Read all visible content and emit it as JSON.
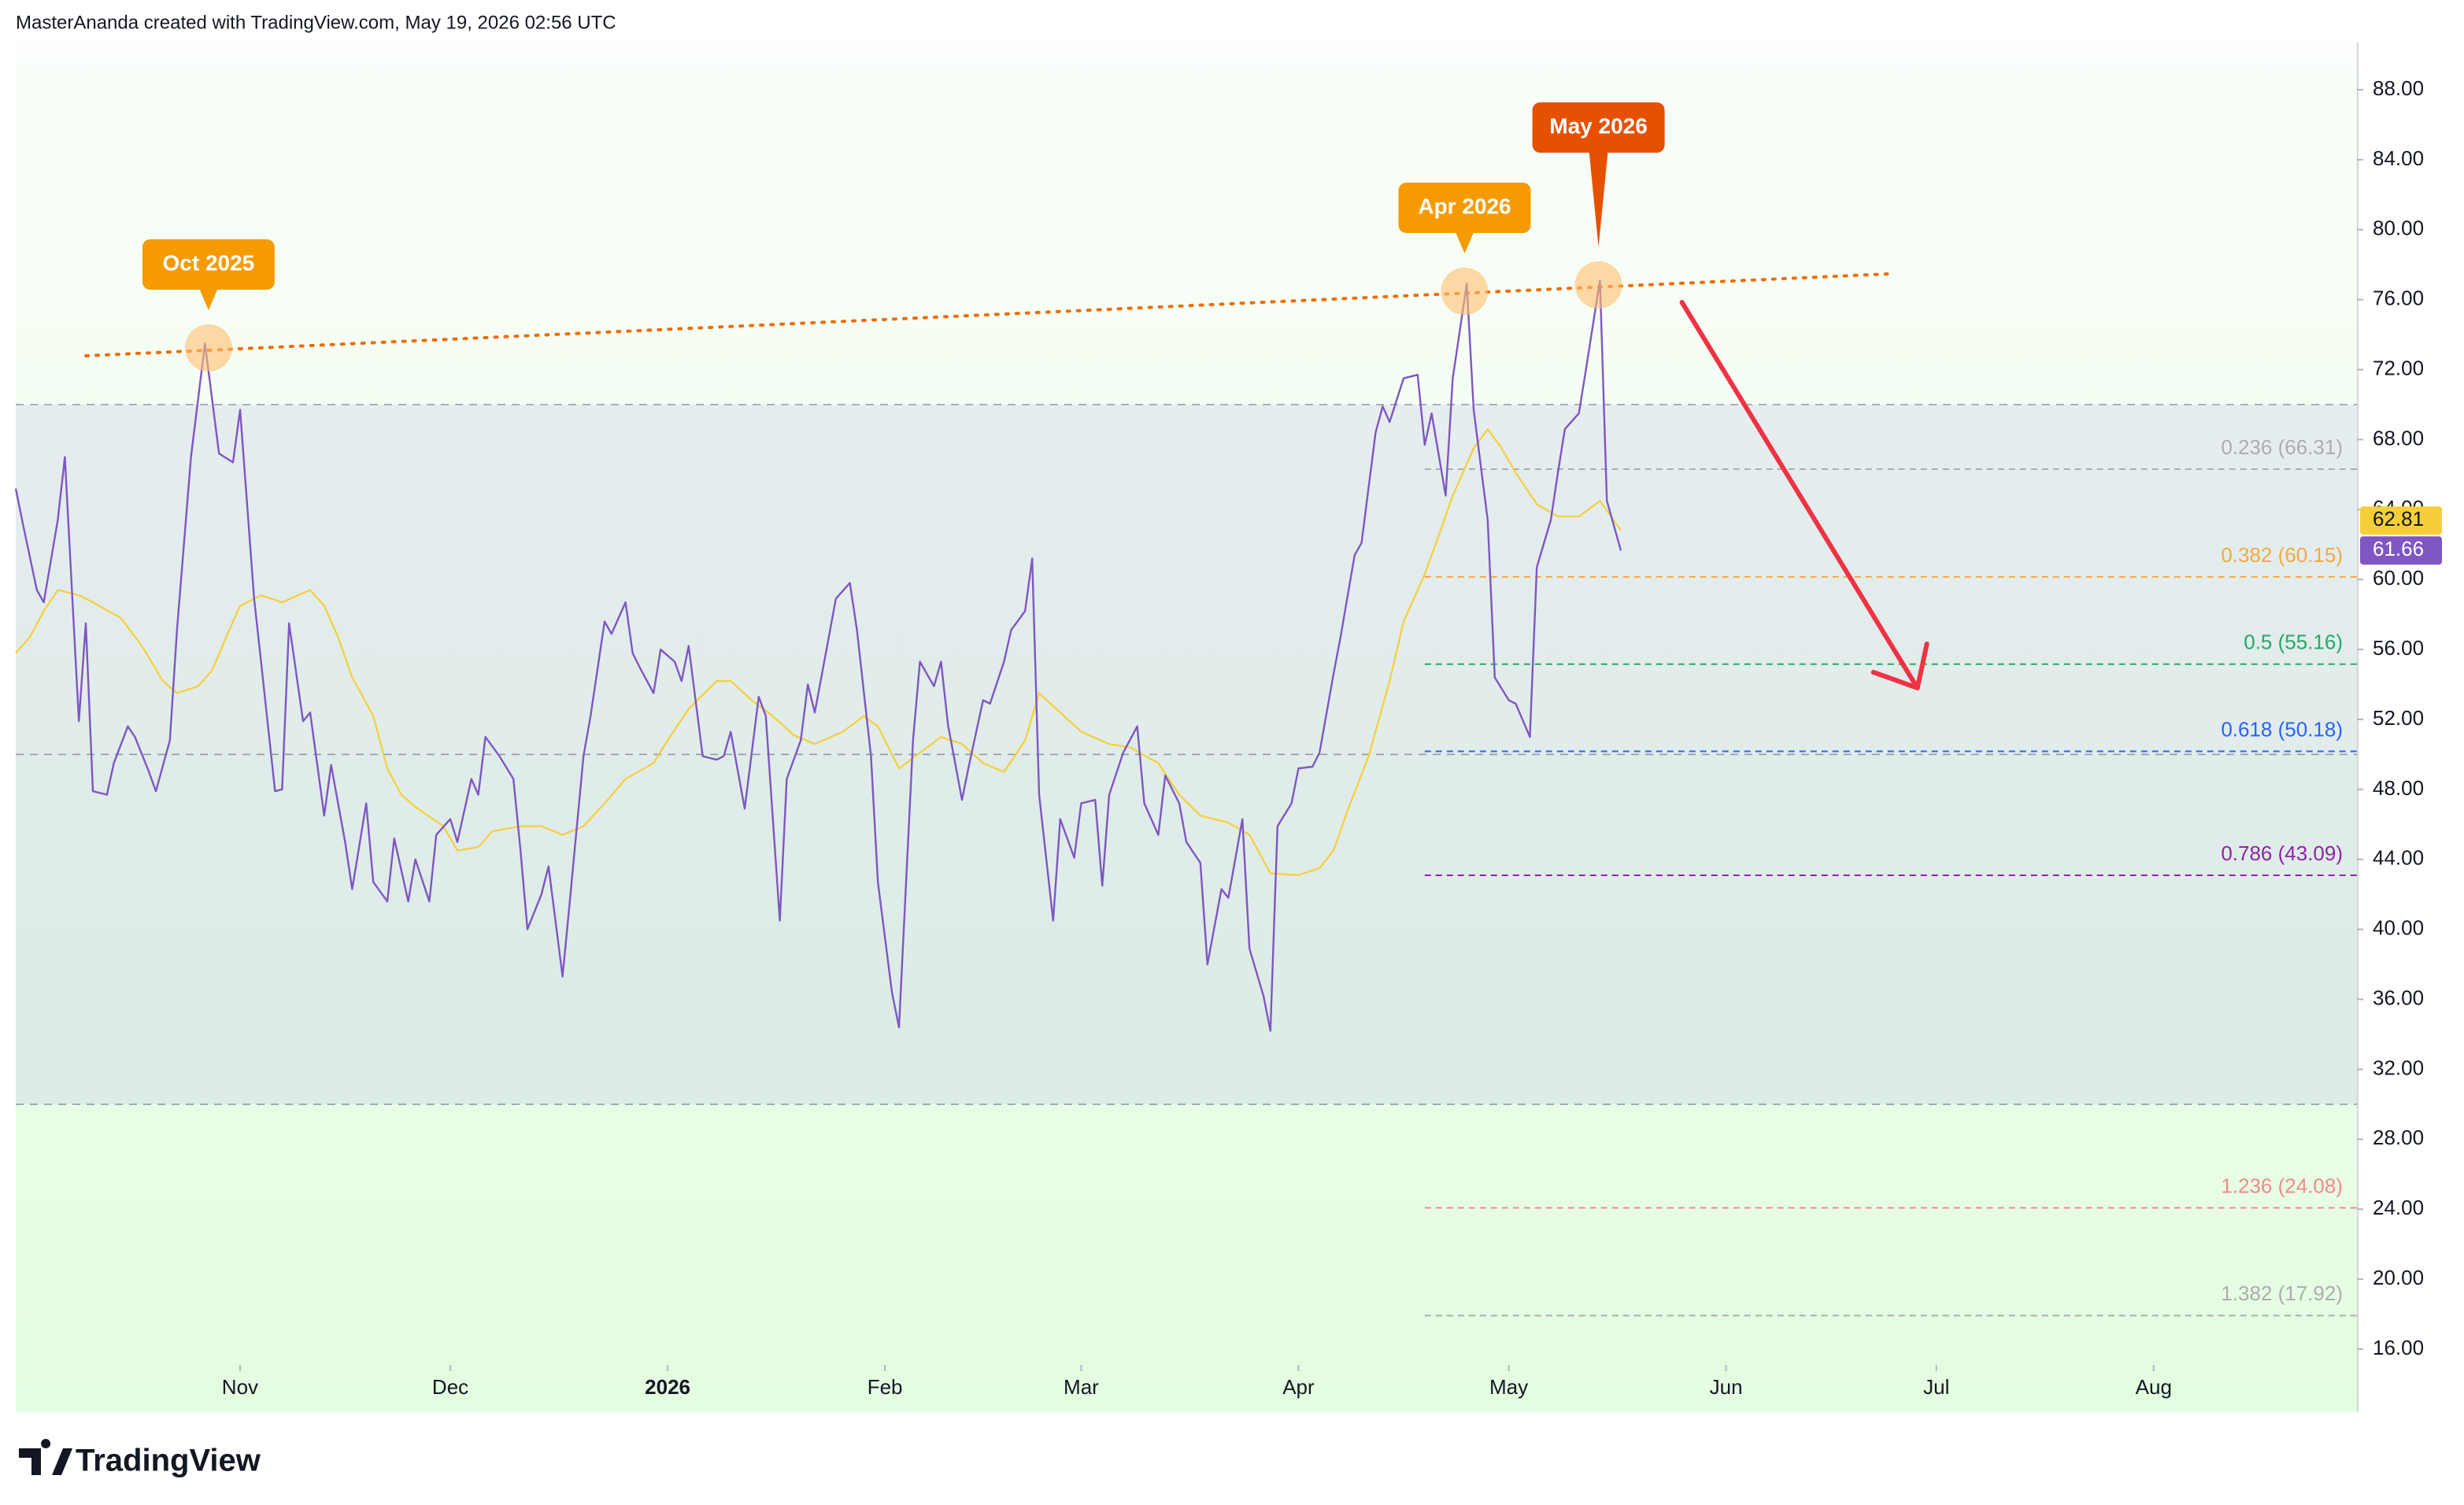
{
  "chart_data": {
    "type": "line",
    "header": "MasterAnanda created with TradingView.com, May 19, 2026 02:56 UTC",
    "brand": "TradingView",
    "xlim": [
      -1,
      333
    ],
    "xticks": [
      {
        "value": 31,
        "label": "Nov"
      },
      {
        "value": 61,
        "label": "Dec"
      },
      {
        "value": 92,
        "label": "2026",
        "emphasis": true
      },
      {
        "value": 123,
        "label": "Feb"
      },
      {
        "value": 151,
        "label": "Mar"
      },
      {
        "value": 182,
        "label": "Apr"
      },
      {
        "value": 212,
        "label": "May"
      },
      {
        "value": 243,
        "label": "Jun"
      },
      {
        "value": 273,
        "label": "Jul"
      },
      {
        "value": 304,
        "label": "Aug"
      }
    ],
    "ylim": [
      15.1,
      90.7
    ],
    "yticks": [
      {
        "value": 16,
        "label": "16.00"
      },
      {
        "value": 20,
        "label": "20.00"
      },
      {
        "value": 24,
        "label": "24.00"
      },
      {
        "value": 28,
        "label": "28.00"
      },
      {
        "value": 32,
        "label": "32.00"
      },
      {
        "value": 36,
        "label": "36.00"
      },
      {
        "value": 40,
        "label": "40.00"
      },
      {
        "value": 44,
        "label": "44.00"
      },
      {
        "value": 48,
        "label": "48.00"
      },
      {
        "value": 52,
        "label": "52.00"
      },
      {
        "value": 56,
        "label": "56.00"
      },
      {
        "value": 60,
        "label": "60.00"
      },
      {
        "value": 64,
        "label": "64.00"
      },
      {
        "value": 68,
        "label": "68.00"
      },
      {
        "value": 72,
        "label": "72.00"
      },
      {
        "value": 76,
        "label": "76.00"
      },
      {
        "value": 80,
        "label": "80.00"
      },
      {
        "value": 84,
        "label": "84.00"
      },
      {
        "value": 88,
        "label": "88.00"
      }
    ],
    "series": [
      {
        "color": "#7e57c2",
        "x": [
          -1,
          0,
          2,
          3,
          5,
          6,
          8,
          9,
          10,
          12,
          13,
          15,
          16,
          18,
          19,
          21,
          22,
          24,
          26,
          28,
          30,
          31,
          33,
          34,
          36,
          37,
          38,
          40,
          41,
          43,
          44,
          46,
          47,
          49,
          50,
          52,
          53,
          55,
          56,
          58,
          59,
          61,
          62,
          64,
          65,
          66,
          68,
          70,
          71,
          72,
          74,
          75,
          77,
          78,
          80,
          81,
          83,
          84,
          86,
          87,
          88,
          90,
          91,
          93,
          94,
          95,
          97,
          99,
          100,
          101,
          103,
          105,
          106,
          108,
          109,
          111,
          112,
          113,
          115,
          116,
          118,
          119,
          121,
          122,
          124,
          125,
          127,
          128,
          130,
          131,
          132,
          134,
          135,
          137,
          138,
          140,
          141,
          143,
          144,
          145,
          147,
          148,
          150,
          151,
          153,
          154,
          155,
          157,
          159,
          160,
          162,
          163,
          165,
          166,
          168,
          169,
          171,
          172,
          174,
          175,
          177,
          178,
          179,
          181,
          182,
          184,
          185,
          187,
          188,
          190,
          191,
          193,
          194,
          195,
          197,
          199,
          200,
          201,
          203,
          204,
          206,
          207,
          209,
          210,
          212,
          213,
          215,
          216,
          218,
          219,
          220,
          222,
          223,
          225,
          226,
          228
        ],
        "values": [
          65.2,
          63.2,
          59.4,
          58.7,
          63.4,
          67.0,
          51.9,
          57.5,
          47.9,
          47.7,
          49.5,
          51.6,
          51.0,
          49.0,
          47.9,
          50.8,
          57.1,
          67.0,
          73.5,
          67.2,
          66.7,
          69.7,
          58.9,
          55.3,
          47.9,
          48.0,
          57.5,
          51.9,
          52.4,
          46.5,
          49.4,
          45.0,
          42.3,
          47.2,
          42.7,
          41.6,
          45.2,
          41.6,
          44.0,
          41.6,
          45.4,
          46.3,
          45.0,
          48.6,
          47.7,
          51.0,
          49.9,
          48.6,
          44.5,
          40.0,
          42.0,
          43.6,
          37.3,
          41.4,
          49.9,
          52.2,
          57.6,
          56.9,
          58.7,
          55.8,
          55.0,
          53.5,
          56.0,
          55.3,
          54.2,
          56.2,
          49.9,
          49.7,
          49.9,
          51.3,
          46.9,
          53.3,
          52.2,
          40.5,
          48.6,
          50.8,
          54.0,
          52.4,
          56.7,
          58.9,
          59.8,
          57.1,
          49.9,
          42.7,
          36.4,
          34.4,
          50.8,
          55.3,
          53.9,
          55.3,
          51.7,
          47.4,
          49.4,
          53.1,
          52.9,
          55.3,
          57.1,
          58.2,
          61.2,
          47.7,
          40.5,
          46.3,
          44.1,
          47.2,
          47.4,
          42.5,
          47.7,
          50.1,
          51.6,
          47.2,
          45.4,
          48.8,
          47.2,
          45.0,
          43.8,
          38.0,
          42.3,
          41.8,
          46.3,
          38.9,
          36.2,
          34.2,
          45.9,
          47.2,
          49.2,
          49.3,
          50.1,
          54.6,
          56.7,
          61.4,
          62.1,
          68.4,
          69.9,
          69.0,
          71.5,
          71.7,
          67.7,
          69.5,
          64.8,
          71.5,
          76.9,
          69.7,
          63.4,
          54.4,
          53.1,
          52.9,
          51.0,
          60.7,
          63.4,
          66.1,
          68.6,
          69.5,
          72.0,
          77.1,
          64.5,
          61.66
        ]
      },
      {
        "color": "#f5cf3a",
        "x": [
          -1,
          1,
          3,
          5,
          8,
          10,
          14,
          17,
          20,
          22,
          25,
          27,
          29,
          31,
          34,
          37,
          41,
          43,
          45,
          47,
          50,
          52,
          54,
          56,
          60,
          62,
          65,
          67,
          71,
          74,
          77,
          80,
          83,
          86,
          90,
          92,
          95,
          99,
          101,
          104,
          107,
          110,
          113,
          117,
          120,
          122,
          125,
          128,
          131,
          134,
          137,
          140,
          143,
          145,
          148,
          151,
          155,
          158,
          162,
          165,
          168,
          172,
          175,
          178,
          182,
          185,
          187,
          189,
          192,
          195,
          197,
          200,
          202,
          204,
          207,
          209,
          211,
          213,
          216,
          219,
          222,
          225,
          228
        ],
        "values": [
          55.8,
          56.7,
          58.2,
          59.4,
          59.1,
          58.7,
          57.8,
          56.2,
          54.2,
          53.5,
          53.9,
          54.8,
          56.7,
          58.5,
          59.1,
          58.7,
          59.4,
          58.5,
          56.7,
          54.4,
          52.2,
          49.2,
          47.7,
          47.0,
          45.9,
          44.5,
          44.7,
          45.6,
          45.9,
          45.9,
          45.4,
          45.9,
          47.2,
          48.6,
          49.5,
          50.8,
          52.6,
          54.2,
          54.2,
          53.1,
          52.2,
          51.1,
          50.6,
          51.3,
          52.2,
          51.6,
          49.2,
          50.1,
          51.0,
          50.6,
          49.5,
          49.0,
          50.8,
          53.5,
          52.4,
          51.3,
          50.6,
          50.4,
          49.5,
          47.7,
          46.5,
          46.1,
          45.4,
          43.2,
          43.1,
          43.5,
          44.5,
          46.8,
          49.9,
          54.2,
          57.6,
          60.3,
          62.5,
          64.8,
          67.5,
          68.6,
          67.5,
          66.1,
          64.3,
          63.6,
          63.6,
          64.5,
          62.81
        ]
      }
    ],
    "rsi_levels": [
      70,
      50,
      30
    ],
    "fib": {
      "from_x": 200,
      "levels": [
        {
          "label": "0.236 (66.31)",
          "value": 66.31,
          "color": "#adadad"
        },
        {
          "label": "0.382 (60.15)",
          "value": 60.15,
          "color": "#f5a742"
        },
        {
          "label": "0.5 (55.16)",
          "value": 55.16,
          "color": "#26a96a"
        },
        {
          "label": "0.618 (50.18)",
          "value": 50.18,
          "color": "#2962ff"
        },
        {
          "label": "0.786 (43.09)",
          "value": 43.09,
          "color": "#8e24aa"
        },
        {
          "label": "1.236 (24.08)",
          "value": 24.08,
          "color": "#f08a8a"
        },
        {
          "label": "1.382 (17.92)",
          "value": 17.92,
          "color": "#adadad"
        }
      ]
    },
    "trendline": {
      "x": [
        9,
        266
      ],
      "y": [
        72.79,
        77.47
      ],
      "color": "#ef6c00"
    },
    "annotations": [
      {
        "label": "Oct 2025",
        "x": 26.5,
        "y": 73.24,
        "color": "#f59b00"
      },
      {
        "label": "Apr 2026",
        "x": 205.7,
        "y": 76.48,
        "color": "#f59b00"
      },
      {
        "label": "May 2026",
        "x": 224.8,
        "y": 76.84,
        "color": "#e65100"
      }
    ],
    "arrow": {
      "x": [
        236.7,
        270.3
      ],
      "y": [
        75.85,
        53.8
      ],
      "color": "#ee3344"
    }
  }
}
